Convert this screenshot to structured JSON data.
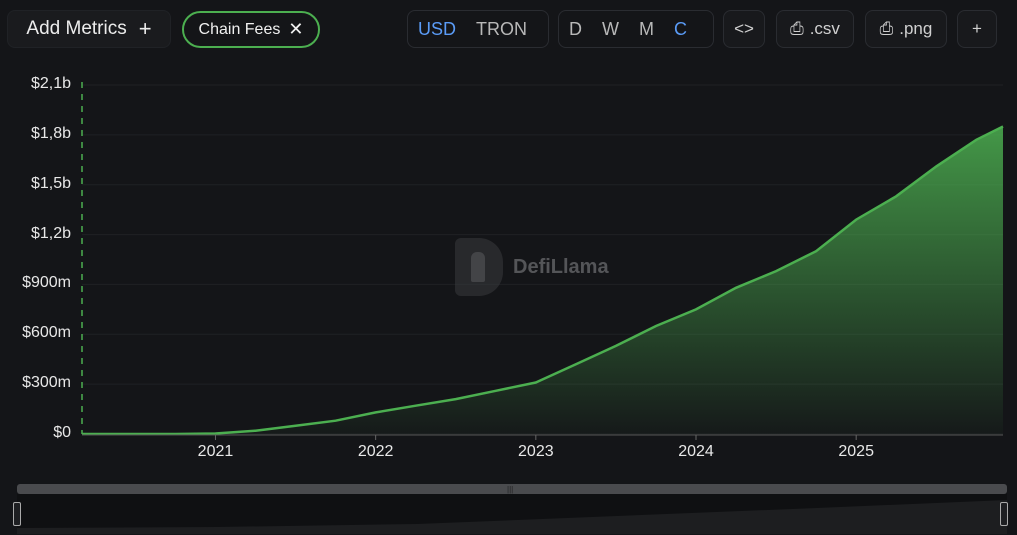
{
  "toolbar": {
    "add_metrics_label": "Add Metrics",
    "add_metrics_icon": "plus-icon",
    "metric_chip_label": "Chain Fees",
    "metric_chip_remove_icon": "close-icon",
    "currency_options": [
      "USD",
      "TRON"
    ],
    "currency_selected": "USD",
    "granularity_options": [
      "D",
      "W",
      "M",
      "C"
    ],
    "granularity_selected": "C",
    "embed_icon": "code-icon",
    "csv_label": ".csv",
    "csv_icon": "download-file-icon",
    "png_label": ".png",
    "png_icon": "download-file-icon",
    "more_icon": "plus-icon"
  },
  "watermark_text": "DefiLlama",
  "colors": {
    "accent": "#4caf50",
    "selected": "#5a9bf6",
    "background": "#141518"
  },
  "chart_data": {
    "type": "area",
    "title": "",
    "xlabel": "",
    "ylabel": "",
    "x_ticks": [
      "2021",
      "2022",
      "2023",
      "2024",
      "2025"
    ],
    "y_ticks": [
      "$0",
      "$300m",
      "$600m",
      "$900m",
      "$1,2b",
      "$1,5b",
      "$1,8b",
      "$2,1b"
    ],
    "ylim": [
      0,
      2100000000
    ],
    "grid": true,
    "series": [
      {
        "x": [
          "2020-03",
          "2020-07",
          "2020-10",
          "2021-01",
          "2021-04",
          "2021-07",
          "2021-10",
          "2022-01",
          "2022-04",
          "2022-07",
          "2022-10",
          "2023-01",
          "2023-04",
          "2023-07",
          "2023-10",
          "2024-01",
          "2024-04",
          "2024-07",
          "2024-10",
          "2025-01",
          "2025-04",
          "2025-07",
          "2025-10",
          "2025-11"
        ],
        "values": [
          0,
          0,
          0,
          3000000,
          20000000,
          50000000,
          80000000,
          130000000,
          170000000,
          210000000,
          260000000,
          310000000,
          420000000,
          530000000,
          650000000,
          750000000,
          880000000,
          980000000,
          1100000000,
          1290000000,
          1430000000,
          1610000000,
          1770000000,
          1850000000
        ]
      }
    ]
  }
}
